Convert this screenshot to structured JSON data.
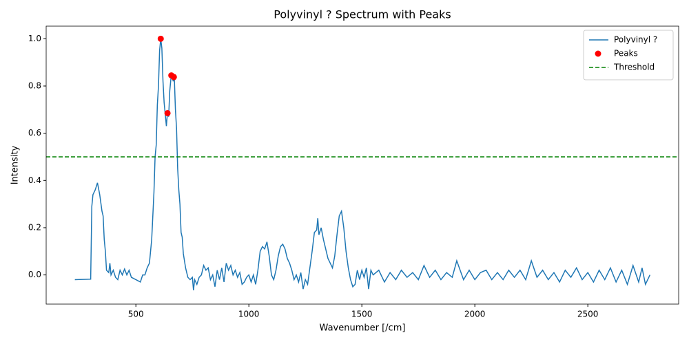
{
  "chart_data": {
    "type": "line",
    "title": "Polyvinyl ? Spectrum with Peaks",
    "x_label": "Wavenumber [/cm]",
    "y_label": "Intensity",
    "xlim": [
      103,
      2902
    ],
    "ylim": [
      -0.1235,
      1.0535
    ],
    "xticks": [
      500,
      1000,
      1500,
      2000,
      2500
    ],
    "yticks": [
      {
        "value": 0,
        "label": "0.0"
      },
      {
        "value": 0.2,
        "label": "0.2"
      },
      {
        "value": 0.4,
        "label": "0.4"
      },
      {
        "value": 0.6,
        "label": "0.6"
      },
      {
        "value": 0.8,
        "label": "0.8"
      },
      {
        "value": 1,
        "label": "1.0"
      }
    ],
    "legend": "upper right",
    "series": [
      {
        "name": "Polyvinyl ?",
        "type": "line",
        "color": "#1f77b4",
        "x": [
          230,
          300,
          305,
          310,
          320,
          330,
          340,
          350,
          355,
          360,
          365,
          370,
          380,
          385,
          390,
          400,
          410,
          420,
          430,
          440,
          450,
          460,
          470,
          480,
          500,
          520,
          530,
          540,
          550,
          560,
          570,
          580,
          585,
          590,
          595,
          600,
          605,
          610,
          615,
          620,
          625,
          630,
          635,
          640,
          645,
          650,
          655,
          660,
          665,
          670,
          675,
          680,
          685,
          690,
          695,
          700,
          705,
          710,
          715,
          720,
          730,
          740,
          750,
          755,
          760,
          770,
          780,
          790,
          800,
          810,
          820,
          830,
          840,
          850,
          860,
          870,
          880,
          890,
          900,
          910,
          920,
          930,
          940,
          950,
          960,
          970,
          980,
          990,
          1000,
          1010,
          1020,
          1030,
          1040,
          1050,
          1060,
          1070,
          1080,
          1090,
          1100,
          1110,
          1120,
          1130,
          1140,
          1150,
          1160,
          1170,
          1180,
          1190,
          1200,
          1210,
          1220,
          1230,
          1240,
          1250,
          1260,
          1270,
          1280,
          1290,
          1300,
          1305,
          1310,
          1320,
          1330,
          1340,
          1350,
          1360,
          1370,
          1380,
          1390,
          1400,
          1410,
          1420,
          1430,
          1440,
          1450,
          1460,
          1470,
          1480,
          1490,
          1500,
          1510,
          1520,
          1530,
          1540,
          1550,
          1575,
          1600,
          1625,
          1650,
          1675,
          1700,
          1725,
          1750,
          1775,
          1800,
          1825,
          1850,
          1875,
          1900,
          1920,
          1950,
          1975,
          2000,
          2025,
          2050,
          2075,
          2100,
          2125,
          2150,
          2175,
          2200,
          2225,
          2250,
          2275,
          2300,
          2325,
          2350,
          2375,
          2400,
          2425,
          2450,
          2475,
          2500,
          2525,
          2550,
          2575,
          2600,
          2625,
          2650,
          2675,
          2700,
          2725,
          2740,
          2755,
          2775
        ],
        "values": [
          -0.02,
          -0.018,
          0.29,
          0.34,
          0.36,
          0.39,
          0.34,
          0.27,
          0.25,
          0.15,
          0.1,
          0.02,
          0.01,
          0.05,
          0,
          0.02,
          -0.01,
          -0.02,
          0.02,
          0,
          0.025,
          0,
          0.02,
          -0.01,
          -0.02,
          -0.03,
          0,
          0,
          0.03,
          0.05,
          0.15,
          0.35,
          0.5,
          0.55,
          0.72,
          0.8,
          0.95,
          1,
          0.96,
          0.82,
          0.73,
          0.68,
          0.63,
          0.69,
          0.67,
          0.78,
          0.83,
          0.85,
          0.82,
          0.84,
          0.7,
          0.62,
          0.45,
          0.36,
          0.3,
          0.18,
          0.16,
          0.09,
          0.06,
          0.03,
          -0.01,
          -0.02,
          -0.01,
          -0.065,
          -0.02,
          -0.04,
          -0.01,
          0,
          0.04,
          0.02,
          0.03,
          -0.02,
          0,
          -0.05,
          0.02,
          -0.02,
          0.03,
          -0.03,
          0.05,
          0.02,
          0.04,
          0,
          0.02,
          -0.01,
          0.01,
          -0.04,
          -0.03,
          -0.01,
          0,
          -0.03,
          0,
          -0.04,
          0.02,
          0.1,
          0.12,
          0.11,
          0.14,
          0.08,
          0,
          -0.02,
          0.02,
          0.08,
          0.12,
          0.13,
          0.11,
          0.07,
          0.05,
          0.02,
          -0.02,
          0,
          -0.03,
          0.01,
          -0.06,
          -0.02,
          -0.04,
          0.03,
          0.1,
          0.18,
          0.19,
          0.24,
          0.17,
          0.2,
          0.15,
          0.11,
          0.07,
          0.05,
          0.03,
          0.08,
          0.17,
          0.25,
          0.27,
          0.2,
          0.1,
          0.03,
          -0.02,
          -0.05,
          -0.04,
          0.02,
          -0.02,
          0.02,
          -0.01,
          0.03,
          -0.06,
          0.02,
          0,
          0.02,
          -0.03,
          0.01,
          -0.02,
          0.02,
          -0.01,
          0.01,
          -0.02,
          0.04,
          -0.01,
          0.02,
          -0.02,
          0.01,
          -0.01,
          0.06,
          -0.02,
          0.02,
          -0.02,
          0.01,
          0.02,
          -0.02,
          0.01,
          -0.02,
          0.02,
          -0.01,
          0.02,
          -0.02,
          0.06,
          -0.01,
          0.02,
          -0.02,
          0.01,
          -0.03,
          0.02,
          -0.01,
          0.03,
          -0.02,
          0.01,
          -0.03,
          0.02,
          -0.02,
          0.03,
          -0.03,
          0.02,
          -0.04,
          0.04,
          -0.03,
          0.03,
          -0.04,
          0
        ]
      },
      {
        "name": "Peaks",
        "type": "scatter",
        "color": "#ff0000",
        "x": [
          610,
          640,
          657,
          668
        ],
        "values": [
          1,
          0.685,
          0.845,
          0.838
        ]
      }
    ],
    "hlines": [
      {
        "name": "Threshold",
        "value": 0.5,
        "color": "#008000",
        "style": "dashed"
      }
    ]
  }
}
